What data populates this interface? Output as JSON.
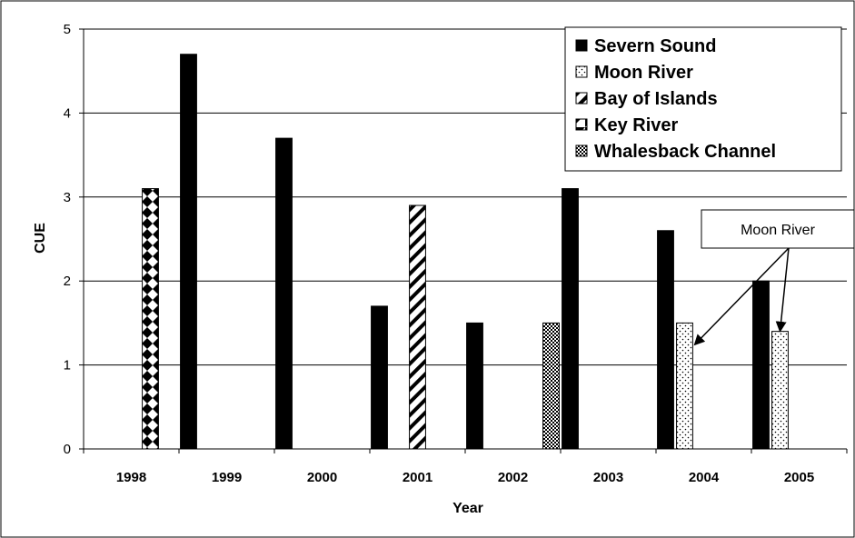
{
  "chart_data": {
    "type": "bar",
    "xlabel": "Year",
    "ylabel": "CUE",
    "ylim": [
      0,
      5
    ],
    "yticks": [
      "0",
      "1",
      "2",
      "3",
      "4",
      "5"
    ],
    "categories": [
      "1998",
      "1999",
      "2000",
      "2001",
      "2002",
      "2003",
      "2004",
      "2005"
    ],
    "grid": true,
    "legend_position": "top-right",
    "series": [
      {
        "name": "Severn Sound",
        "values": [
          null,
          4.7,
          3.7,
          1.7,
          1.5,
          3.1,
          2.6,
          2.0
        ],
        "color": "#000000",
        "pattern": "solid"
      },
      {
        "name": "Moon River",
        "values": [
          null,
          null,
          null,
          null,
          null,
          null,
          1.5,
          1.4
        ],
        "color": "#ffffff",
        "pattern": "dots"
      },
      {
        "name": "Bay of Islands",
        "values": [
          null,
          null,
          null,
          2.9,
          null,
          null,
          null,
          null
        ],
        "color": "#ffffff",
        "pattern": "diagonal"
      },
      {
        "name": "Key River",
        "values": [
          3.1,
          null,
          null,
          null,
          null,
          null,
          null,
          null
        ],
        "color": "#ffffff",
        "pattern": "diamonds"
      },
      {
        "name": "Whalesback Channel",
        "values": [
          null,
          null,
          null,
          null,
          1.5,
          null,
          null,
          null
        ],
        "color": "#ffffff",
        "pattern": "checker"
      }
    ],
    "annotations": [
      {
        "text": "Moon River",
        "targets": [
          {
            "category": "2004",
            "series": "Moon River"
          },
          {
            "category": "2005",
            "series": "Moon River"
          }
        ]
      }
    ]
  }
}
